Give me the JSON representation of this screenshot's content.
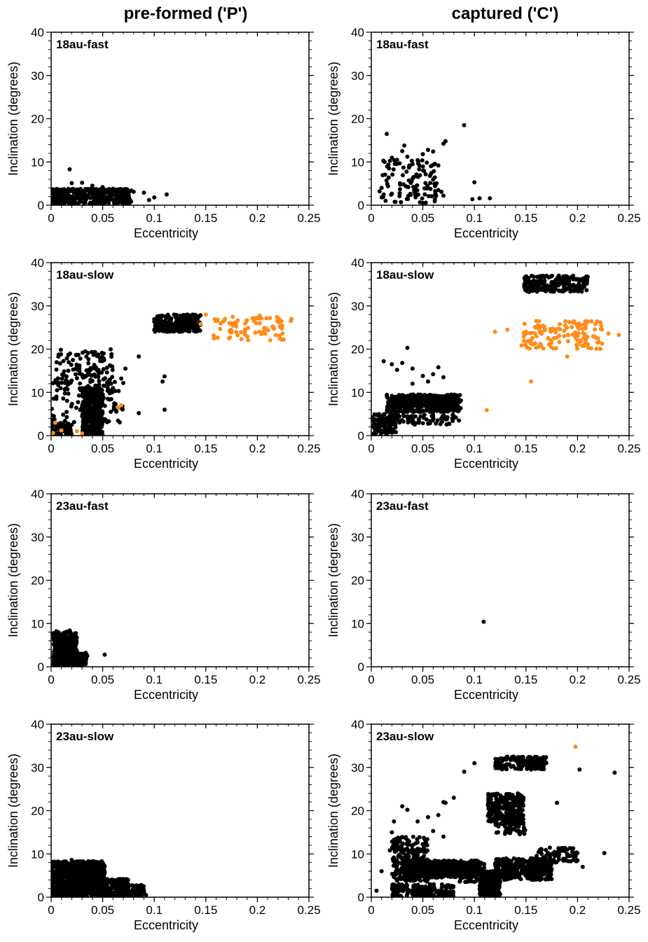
{
  "columns": [
    {
      "title": "pre-formed ('P')"
    },
    {
      "title": "captured ('C')"
    }
  ],
  "colors": {
    "black": "#000000",
    "orange": "#ff8c1a"
  },
  "axes": {
    "xlabel": "Eccentricity",
    "ylabel": "Inclination (degrees)",
    "xlim": [
      0,
      0.25
    ],
    "ylim": [
      0,
      40
    ],
    "xticks": [
      "0",
      "0.05",
      "0.1",
      "0.15",
      "0.2",
      "0.25"
    ],
    "yticks": [
      "0",
      "10",
      "20",
      "30",
      "40"
    ]
  },
  "chart_data": [
    {
      "type": "scatter",
      "label": "18au-fast",
      "column": 0,
      "row": 0,
      "xlim": [
        0,
        0.25
      ],
      "ylim": [
        0,
        40
      ],
      "xlabel": "Eccentricity",
      "ylabel": "Inclination (degrees)",
      "series": [
        {
          "color": "black",
          "points": [
            [
              0.018,
              8.3
            ],
            [
              0.02,
              5.1
            ],
            [
              0.03,
              5.2
            ],
            [
              0.04,
              4.5
            ],
            [
              0.05,
              4.2
            ],
            [
              0.06,
              3.8
            ],
            [
              0.07,
              3.2
            ],
            [
              0.075,
              2.6
            ],
            [
              0.08,
              3.1
            ],
            [
              0.09,
              2.9
            ],
            [
              0.095,
              1.2
            ],
            [
              0.1,
              1.8
            ],
            [
              0.112,
              2.5
            ]
          ],
          "clusters": [
            {
              "x": [
                0.0,
                0.078
              ],
              "y": [
                0.2,
                3.8
              ],
              "n": 420
            }
          ]
        }
      ]
    },
    {
      "type": "scatter",
      "label": "18au-fast",
      "column": 1,
      "row": 0,
      "xlim": [
        0,
        0.25
      ],
      "ylim": [
        0,
        40
      ],
      "xlabel": "Eccentricity",
      "ylabel": "Inclination (degrees)",
      "series": [
        {
          "color": "black",
          "points": [
            [
              0.015,
              16.5
            ],
            [
              0.02,
              11
            ],
            [
              0.025,
              10.5
            ],
            [
              0.03,
              12.5
            ],
            [
              0.032,
              13.8
            ],
            [
              0.035,
              11.2
            ],
            [
              0.04,
              9.5
            ],
            [
              0.045,
              10.4
            ],
            [
              0.05,
              11.8
            ],
            [
              0.055,
              12.8
            ],
            [
              0.06,
              12.4
            ],
            [
              0.065,
              9.2
            ],
            [
              0.07,
              14.2
            ],
            [
              0.072,
              14.8
            ],
            [
              0.09,
              18.5
            ],
            [
              0.1,
              5.3
            ],
            [
              0.098,
              1.4
            ],
            [
              0.105,
              1.6
            ],
            [
              0.115,
              1.6
            ],
            [
              0.065,
              3.5
            ],
            [
              0.068,
              3.1
            ],
            [
              0.07,
              2.2
            ],
            [
              0.012,
              2.5
            ],
            [
              0.01,
              4
            ],
            [
              0.008,
              3.2
            ]
          ],
          "clusters": [
            {
              "x": [
                0.01,
                0.065
              ],
              "y": [
                0.5,
                10.5
              ],
              "n": 110
            }
          ]
        }
      ]
    },
    {
      "type": "scatter",
      "label": "18au-slow",
      "column": 0,
      "row": 1,
      "xlim": [
        0,
        0.25
      ],
      "ylim": [
        0,
        40
      ],
      "xlabel": "Eccentricity",
      "ylabel": "Inclination (degrees)",
      "series": [
        {
          "color": "black",
          "points": [
            [
              0.085,
              18.3
            ],
            [
              0.085,
              5.2
            ],
            [
              0.108,
              12.5
            ],
            [
              0.11,
              13.7
            ],
            [
              0.11,
              6
            ],
            [
              0.072,
              15.5
            ],
            [
              0.068,
              13.2
            ],
            [
              0.06,
              11
            ],
            [
              0.055,
              8.5
            ]
          ],
          "clusters": [
            {
              "x": [
                0.005,
                0.06
              ],
              "y": [
                10,
                20
              ],
              "n": 140
            },
            {
              "x": [
                0.0,
                0.07
              ],
              "y": [
                3,
                13
              ],
              "n": 90
            },
            {
              "x": [
                0.03,
                0.05
              ],
              "y": [
                0,
                11
              ],
              "n": 450
            },
            {
              "x": [
                0.0,
                0.02
              ],
              "y": [
                0,
                3
              ],
              "n": 80
            },
            {
              "x": [
                0.1,
                0.145
              ],
              "y": [
                24,
                28
              ],
              "n": 260
            }
          ]
        },
        {
          "color": "orange",
          "points": [
            [
              0.004,
              3
            ],
            [
              0.002,
              0.6
            ],
            [
              0.01,
              1.2
            ],
            [
              0.025,
              1
            ],
            [
              0.03,
              0.5
            ],
            [
              0.065,
              6.5
            ],
            [
              0.068,
              7
            ],
            [
              0.145,
              25.8
            ],
            [
              0.15,
              28
            ]
          ],
          "clusters": [
            {
              "x": [
                0.155,
                0.235
              ],
              "y": [
                22,
                27.8
              ],
              "n": 80
            }
          ]
        }
      ]
    },
    {
      "type": "scatter",
      "label": "18au-slow",
      "column": 1,
      "row": 1,
      "xlim": [
        0,
        0.25
      ],
      "ylim": [
        0,
        40
      ],
      "xlabel": "Eccentricity",
      "ylabel": "Inclination (degrees)",
      "series": [
        {
          "color": "black",
          "points": [
            [
              0.012,
              17.2
            ],
            [
              0.02,
              16.5
            ],
            [
              0.03,
              16.8
            ],
            [
              0.035,
              20.3
            ],
            [
              0.025,
              15.2
            ],
            [
              0.04,
              15.5
            ],
            [
              0.05,
              13.8
            ],
            [
              0.06,
              14.2
            ],
            [
              0.065,
              15.8
            ],
            [
              0.07,
              13.5
            ],
            [
              0.04,
              12
            ],
            [
              0.055,
              12.5
            ],
            [
              0.085,
              3.5
            ],
            [
              0.082,
              4.2
            ]
          ],
          "clusters": [
            {
              "x": [
                0.015,
                0.087
              ],
              "y": [
                5.5,
                9.5
              ],
              "n": 500
            },
            {
              "x": [
                0.0,
                0.025
              ],
              "y": [
                0,
                5
              ],
              "n": 120
            },
            {
              "x": [
                0.02,
                0.08
              ],
              "y": [
                2.5,
                5
              ],
              "n": 70
            },
            {
              "x": [
                0.148,
                0.21
              ],
              "y": [
                33.2,
                37
              ],
              "n": 220
            }
          ]
        },
        {
          "color": "orange",
          "points": [
            [
              0.112,
              5.9
            ],
            [
              0.12,
              24
            ],
            [
              0.132,
              24.5
            ],
            [
              0.15,
              24
            ],
            [
              0.155,
              12.5
            ],
            [
              0.16,
              26.5
            ],
            [
              0.165,
              25.3
            ],
            [
              0.19,
              18.3
            ],
            [
              0.2,
              25.5
            ],
            [
              0.21,
              26.4
            ],
            [
              0.22,
              22.5
            ],
            [
              0.23,
              23.6
            ],
            [
              0.24,
              23.3
            ]
          ],
          "clusters": [
            {
              "x": [
                0.145,
                0.225
              ],
              "y": [
                20,
                26.5
              ],
              "n": 130
            }
          ]
        }
      ]
    },
    {
      "type": "scatter",
      "label": "23au-fast",
      "column": 0,
      "row": 2,
      "xlim": [
        0,
        0.25
      ],
      "ylim": [
        0,
        40
      ],
      "xlabel": "Eccentricity",
      "ylabel": "Inclination (degrees)",
      "series": [
        {
          "color": "black",
          "points": [
            [
              0.052,
              2.8
            ],
            [
              0.035,
              2.5
            ],
            [
              0.033,
              1.8
            ],
            [
              0.03,
              3
            ],
            [
              0.018,
              8.4
            ],
            [
              0.015,
              8.1
            ],
            [
              0.005,
              8.2
            ]
          ],
          "clusters": [
            {
              "x": [
                0.002,
                0.025
              ],
              "y": [
                0.2,
                8
              ],
              "n": 480
            },
            {
              "x": [
                0.015,
                0.035
              ],
              "y": [
                0.2,
                3.2
              ],
              "n": 120
            }
          ]
        }
      ]
    },
    {
      "type": "scatter",
      "label": "23au-fast",
      "column": 1,
      "row": 2,
      "xlim": [
        0,
        0.25
      ],
      "ylim": [
        0,
        40
      ],
      "xlabel": "Eccentricity",
      "ylabel": "Inclination (degrees)",
      "series": [
        {
          "color": "black",
          "points": [
            [
              0.109,
              10.4
            ]
          ],
          "clusters": []
        }
      ]
    },
    {
      "type": "scatter",
      "label": "23au-slow",
      "column": 0,
      "row": 3,
      "xlim": [
        0,
        0.25
      ],
      "ylim": [
        0,
        40
      ],
      "xlabel": "Eccentricity",
      "ylabel": "Inclination (degrees)",
      "series": [
        {
          "color": "black",
          "points": [
            [
              0.09,
              1.2
            ],
            [
              0.092,
              0.5
            ],
            [
              0.088,
              1.8
            ],
            [
              0.05,
              7.8
            ],
            [
              0.04,
              8
            ],
            [
              0.02,
              8.6
            ]
          ],
          "clusters": [
            {
              "x": [
                0.0,
                0.052
              ],
              "y": [
                0,
                8.3
              ],
              "n": 950
            },
            {
              "x": [
                0.045,
                0.075
              ],
              "y": [
                0,
                4.2
              ],
              "n": 250
            },
            {
              "x": [
                0.07,
                0.09
              ],
              "y": [
                0,
                2.8
              ],
              "n": 90
            }
          ]
        }
      ]
    },
    {
      "type": "scatter",
      "label": "23au-slow",
      "column": 1,
      "row": 3,
      "xlim": [
        0,
        0.25
      ],
      "ylim": [
        0,
        40
      ],
      "xlabel": "Eccentricity",
      "ylabel": "Inclination (degrees)",
      "series": [
        {
          "color": "black",
          "points": [
            [
              0.005,
              1.5
            ],
            [
              0.01,
              6
            ],
            [
              0.018,
              10.8
            ],
            [
              0.02,
              15
            ],
            [
              0.022,
              17.5
            ],
            [
              0.03,
              21
            ],
            [
              0.035,
              20.2
            ],
            [
              0.045,
              17.5
            ],
            [
              0.055,
              18.5
            ],
            [
              0.065,
              19
            ],
            [
              0.07,
              22
            ],
            [
              0.072,
              21.8
            ],
            [
              0.08,
              23
            ],
            [
              0.07,
              14
            ],
            [
              0.06,
              15.3
            ],
            [
              0.09,
              29
            ],
            [
              0.1,
              31
            ],
            [
              0.15,
              31.5
            ],
            [
              0.155,
              29.5
            ],
            [
              0.18,
              21.8
            ],
            [
              0.178,
              9.5
            ],
            [
              0.202,
              29.5
            ],
            [
              0.226,
              10.2
            ],
            [
              0.236,
              28.8
            ],
            [
              0.205,
              7
            ],
            [
              0.2,
              8.5
            ],
            [
              0.19,
              11
            ],
            [
              0.195,
              10.5
            ]
          ],
          "clusters": [
            {
              "x": [
                0.02,
                0.055
              ],
              "y": [
                3.5,
                14
              ],
              "n": 220
            },
            {
              "x": [
                0.02,
                0.08
              ],
              "y": [
                0,
                3
              ],
              "n": 200
            },
            {
              "x": [
                0.03,
                0.105
              ],
              "y": [
                4.5,
                8.5
              ],
              "n": 650
            },
            {
              "x": [
                0.105,
                0.125
              ],
              "y": [
                0,
                6
              ],
              "n": 280
            },
            {
              "x": [
                0.113,
                0.148
              ],
              "y": [
                17,
                24
              ],
              "n": 280
            },
            {
              "x": [
                0.12,
                0.15
              ],
              "y": [
                14.5,
                17.5
              ],
              "n": 50
            },
            {
              "x": [
                0.12,
                0.17
              ],
              "y": [
                29.5,
                32.5
              ],
              "n": 160
            },
            {
              "x": [
                0.12,
                0.175
              ],
              "y": [
                4,
                9
              ],
              "n": 380
            },
            {
              "x": [
                0.16,
                0.2
              ],
              "y": [
                8,
                11.5
              ],
              "n": 70
            },
            {
              "x": [
                0.085,
                0.11
              ],
              "y": [
                3.5,
                8
              ],
              "n": 80
            }
          ]
        },
        {
          "color": "orange",
          "points": [
            [
              0.198,
              34.8
            ]
          ],
          "clusters": []
        }
      ]
    }
  ]
}
